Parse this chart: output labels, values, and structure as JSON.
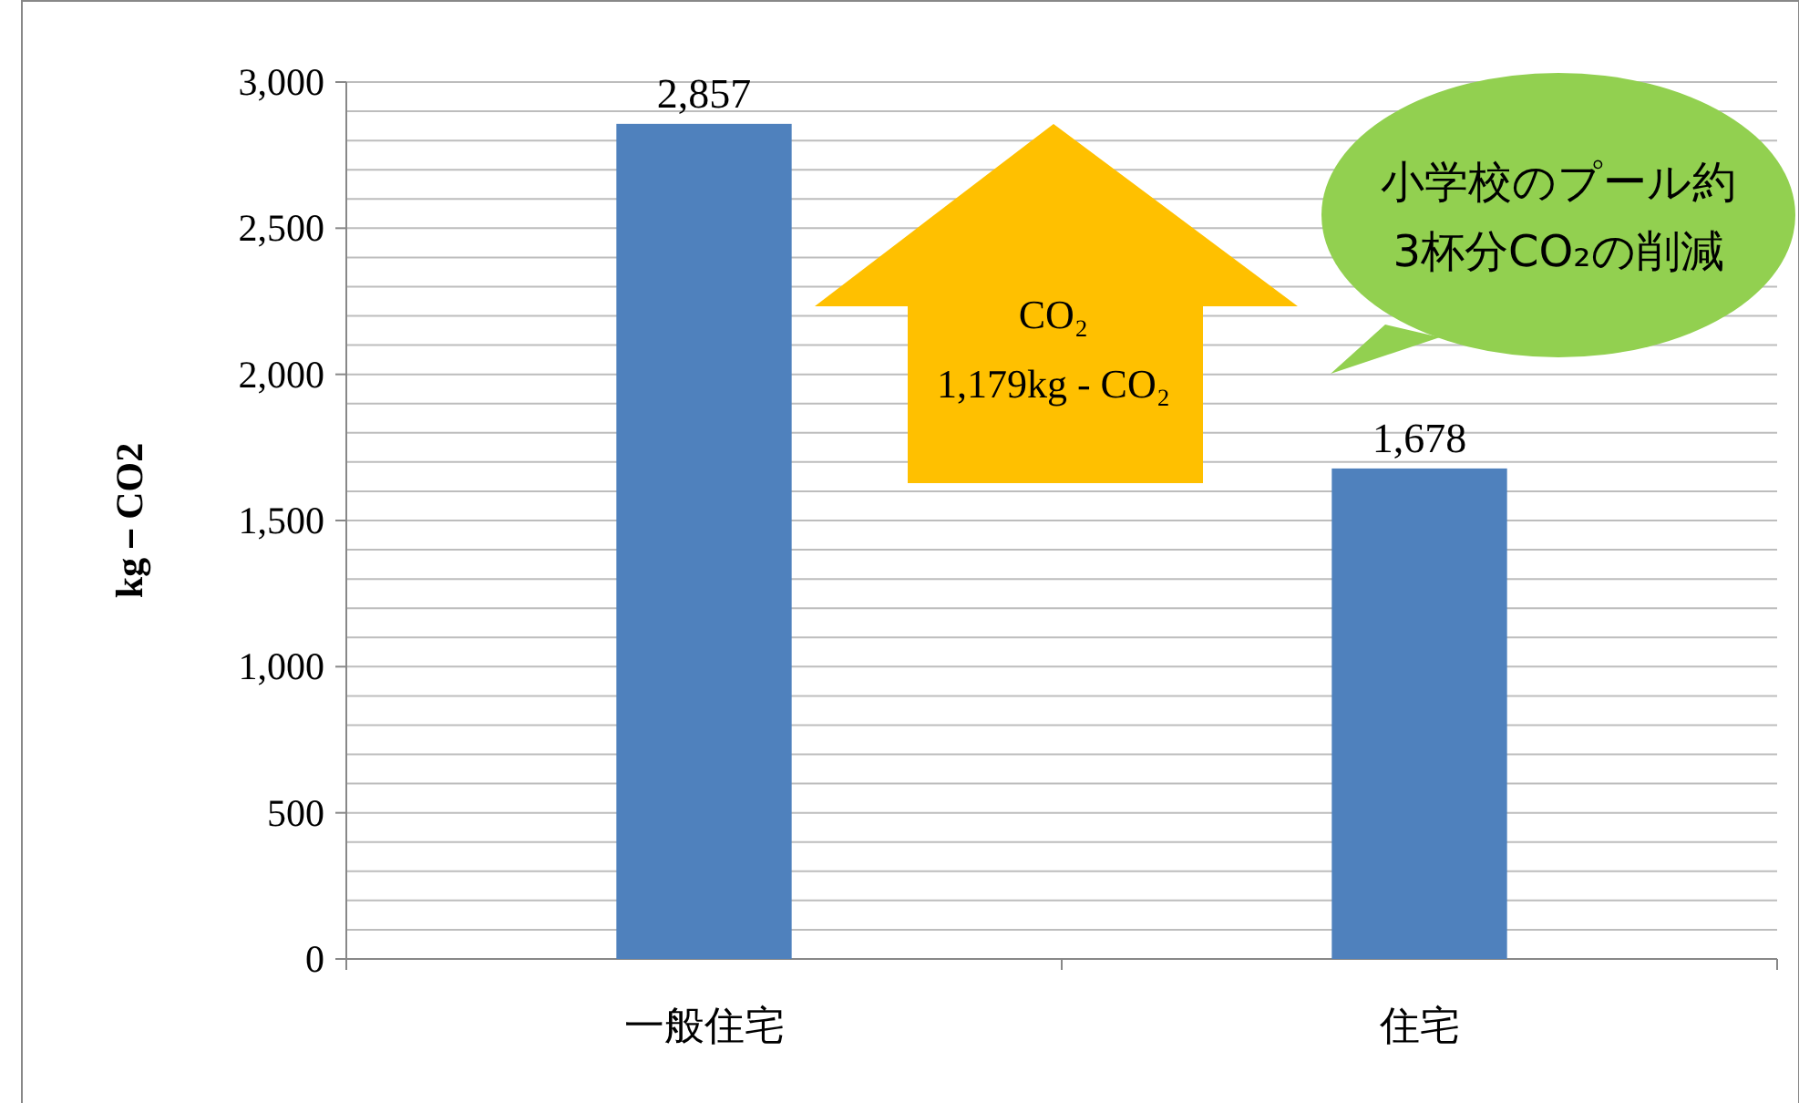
{
  "chart_data": {
    "type": "bar",
    "ylabel": "kg－CO2",
    "categories": [
      "一般住宅",
      "住宅"
    ],
    "values": [
      2857,
      1678
    ],
    "color": "#4f81bd",
    "ylim": [
      0,
      3000
    ],
    "yticks": [
      0,
      {
        "value": 100,
        "label": null
      },
      {
        "value": 200,
        "label": null
      },
      {
        "value": 300,
        "label": null
      },
      {
        "value": 400,
        "label": null
      },
      {
        "value": 500,
        "label": "500"
      },
      {
        "value": 600,
        "label": null
      },
      {
        "value": 700,
        "label": null
      },
      {
        "value": 800,
        "label": null
      },
      {
        "value": 900,
        "label": null
      },
      {
        "value": 1000,
        "label": "1,000"
      },
      {
        "value": 1100,
        "label": null
      },
      {
        "value": 1200,
        "label": null
      },
      {
        "value": 1300,
        "label": null
      },
      {
        "value": 1400,
        "label": null
      },
      {
        "value": 1500,
        "label": "1,500"
      },
      {
        "value": 1600,
        "label": null
      },
      {
        "value": 1700,
        "label": null
      },
      {
        "value": 1800,
        "label": null
      },
      {
        "value": 1900,
        "label": null
      },
      {
        "value": 2000,
        "label": "2,000"
      },
      {
        "value": 2100,
        "label": null
      },
      {
        "value": 2200,
        "label": null
      },
      {
        "value": 2300,
        "label": null
      },
      {
        "value": 2400,
        "label": null
      },
      {
        "value": 2500,
        "label": "2,500"
      },
      {
        "value": 2600,
        "label": null
      },
      {
        "value": 2700,
        "label": null
      },
      {
        "value": 2800,
        "label": null
      },
      {
        "value": 2900,
        "label": null
      },
      {
        "value": 3000,
        "label": "3,000"
      }
    ],
    "grid": "y",
    "value_labels": [
      "2,857",
      "1,678"
    ],
    "annotations": [
      "CO₂",
      "1,179kg - CO₂",
      "小学校のプール約",
      "3杯分CO₂の削減"
    ]
  }
}
